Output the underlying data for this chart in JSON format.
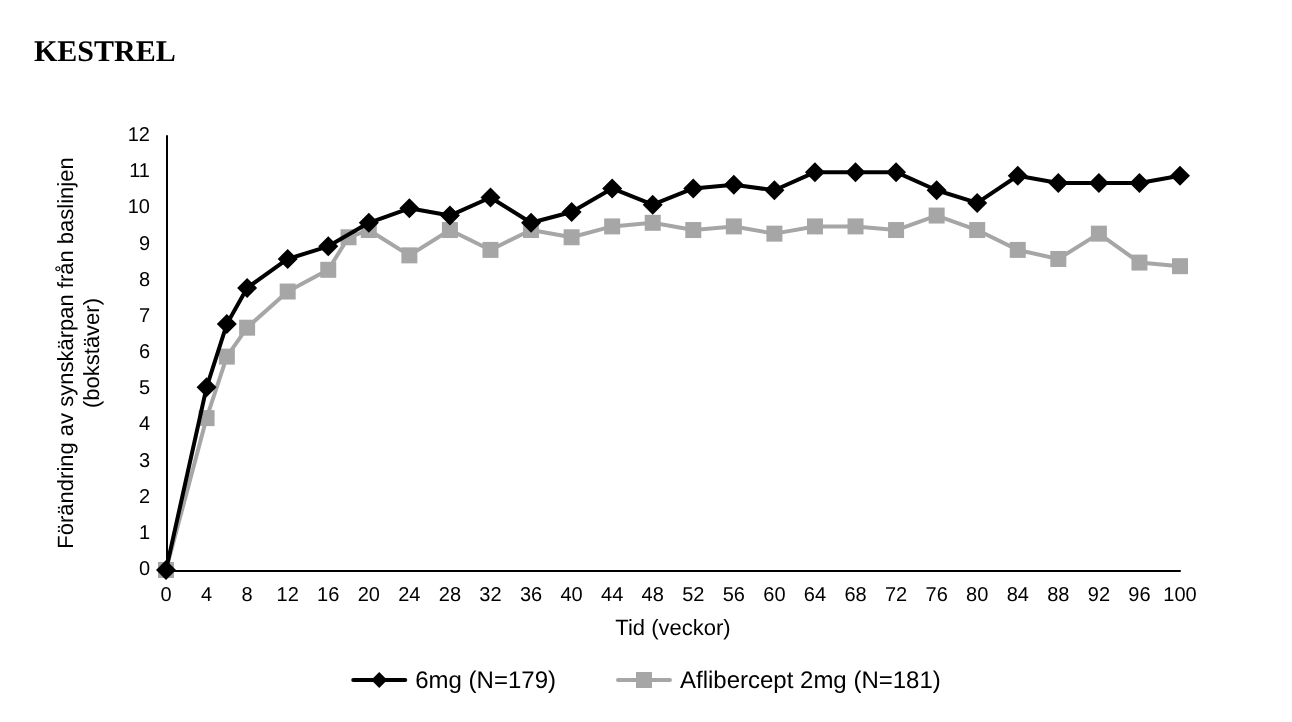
{
  "chart_data": {
    "type": "line",
    "title": "KESTREL",
    "xlabel": "Tid (veckor)",
    "ylabel": "Förändring av synskärpan från baslinjen\n(bokstäver)",
    "xlim": [
      0,
      100
    ],
    "xticks": [
      0,
      4,
      8,
      12,
      16,
      20,
      24,
      28,
      32,
      36,
      40,
      44,
      48,
      52,
      56,
      60,
      64,
      68,
      72,
      76,
      80,
      84,
      88,
      92,
      96,
      100
    ],
    "ylim": [
      0,
      12
    ],
    "yticks": [
      0,
      1,
      2,
      3,
      4,
      5,
      6,
      7,
      8,
      9,
      10,
      11,
      12
    ],
    "grid": false,
    "legend": "bottom",
    "series": [
      {
        "name": "6mg (N=179)",
        "color": "#000000",
        "marker": "diamond",
        "x": [
          0,
          4,
          6,
          8,
          12,
          16,
          20,
          24,
          28,
          32,
          36,
          40,
          44,
          48,
          52,
          56,
          60,
          64,
          68,
          72,
          76,
          80,
          84,
          88,
          92,
          96,
          100
        ],
        "values": [
          0,
          5.05,
          6.8,
          7.8,
          8.6,
          8.95,
          9.6,
          10.0,
          9.8,
          10.3,
          9.6,
          9.9,
          10.55,
          10.1,
          10.55,
          10.65,
          10.5,
          11.0,
          11.0,
          11.0,
          10.5,
          10.15,
          10.9,
          10.7,
          10.7,
          10.7,
          10.9
        ]
      },
      {
        "name": "Aflibercept 2mg (N=181)",
        "color": "#a6a6a6",
        "marker": "square",
        "x": [
          0,
          4,
          6,
          8,
          12,
          16,
          18,
          20,
          24,
          28,
          32,
          36,
          40,
          44,
          48,
          52,
          56,
          60,
          64,
          68,
          72,
          76,
          80,
          84,
          88,
          92,
          96,
          100
        ],
        "values": [
          0,
          4.2,
          5.9,
          6.7,
          7.7,
          8.3,
          9.2,
          9.4,
          8.7,
          9.4,
          8.85,
          9.4,
          9.2,
          9.5,
          9.6,
          9.4,
          9.5,
          9.3,
          9.5,
          9.5,
          9.4,
          9.8,
          9.4,
          8.85,
          8.6,
          9.3,
          8.5,
          8.4
        ]
      }
    ]
  }
}
